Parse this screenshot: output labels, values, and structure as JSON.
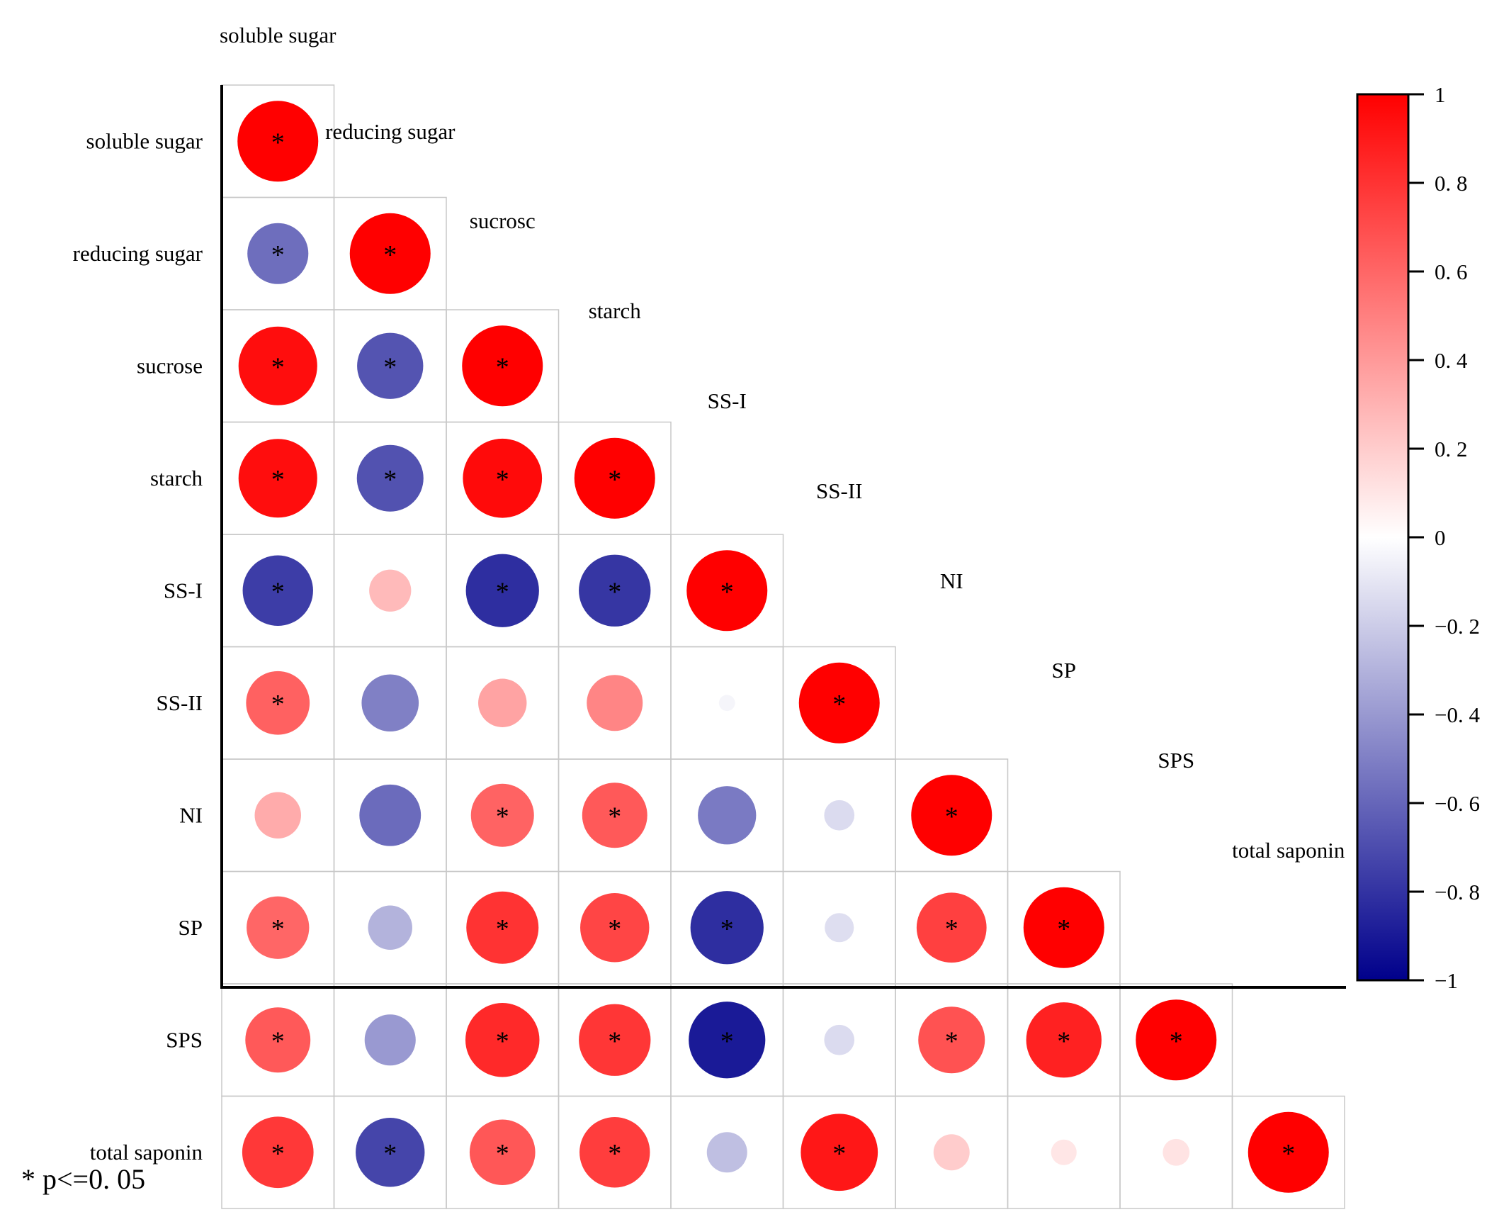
{
  "chart_data": {
    "type": "heatmap",
    "subtype": "lower-triangular correlation matrix (circle size and color = correlation coefficient)",
    "variables": [
      "soluble sugar",
      "reducing sugar",
      "sucrose",
      "starch",
      "SS-I",
      "SS-II",
      "NI",
      "SP",
      "SPS",
      "total saponin"
    ],
    "top_labels": [
      "soluble sugar",
      "reducing sugar",
      "sucrosc",
      "starch",
      "SS-I",
      "SS-II",
      "NI",
      "SP",
      "SPS",
      "total saponin"
    ],
    "matrix": [
      [
        1.0
      ],
      [
        -0.57,
        1.0
      ],
      [
        0.95,
        -0.67,
        1.0
      ],
      [
        0.95,
        -0.68,
        0.96,
        1.0
      ],
      [
        -0.76,
        0.27,
        -0.82,
        -0.79,
        1.0
      ],
      [
        0.62,
        -0.5,
        0.36,
        0.48,
        -0.04,
        1.0
      ],
      [
        0.33,
        -0.58,
        0.61,
        0.65,
        -0.52,
        -0.14,
        1.0
      ],
      [
        0.6,
        -0.3,
        0.8,
        0.73,
        -0.82,
        -0.13,
        0.75,
        1.0
      ],
      [
        0.65,
        -0.4,
        0.84,
        0.79,
        -0.9,
        -0.14,
        0.68,
        0.87,
        1.0
      ],
      [
        0.78,
        -0.73,
        0.66,
        0.76,
        -0.25,
        0.91,
        0.2,
        0.1,
        0.11,
        1.0
      ]
    ],
    "significant": [
      [
        true
      ],
      [
        true,
        true
      ],
      [
        true,
        true,
        true
      ],
      [
        true,
        true,
        true,
        true
      ],
      [
        true,
        false,
        true,
        true,
        true
      ],
      [
        true,
        false,
        false,
        false,
        false,
        true
      ],
      [
        false,
        false,
        true,
        true,
        false,
        false,
        true
      ],
      [
        true,
        false,
        true,
        true,
        true,
        false,
        true,
        true
      ],
      [
        true,
        false,
        true,
        true,
        true,
        false,
        true,
        true,
        true
      ],
      [
        true,
        true,
        true,
        true,
        false,
        true,
        false,
        false,
        false,
        true
      ]
    ],
    "significance_marker": "*",
    "colorbar": {
      "min": -1,
      "max": 1,
      "ticks": [
        1,
        0.8,
        0.6,
        0.4,
        0.2,
        0,
        -0.2,
        -0.4,
        -0.6,
        -0.8,
        -1
      ],
      "tick_labels": [
        "1",
        "0. 8",
        "0. 6",
        "0. 4",
        "0. 2",
        "0",
        "−0. 2",
        "−0. 4",
        "−0. 6",
        "−0. 8",
        "−1"
      ],
      "colors": {
        "low": "#00008b",
        "mid": "#ffffff",
        "high": "#ff0000"
      }
    },
    "legend_note": "*  p<=0. 05"
  }
}
